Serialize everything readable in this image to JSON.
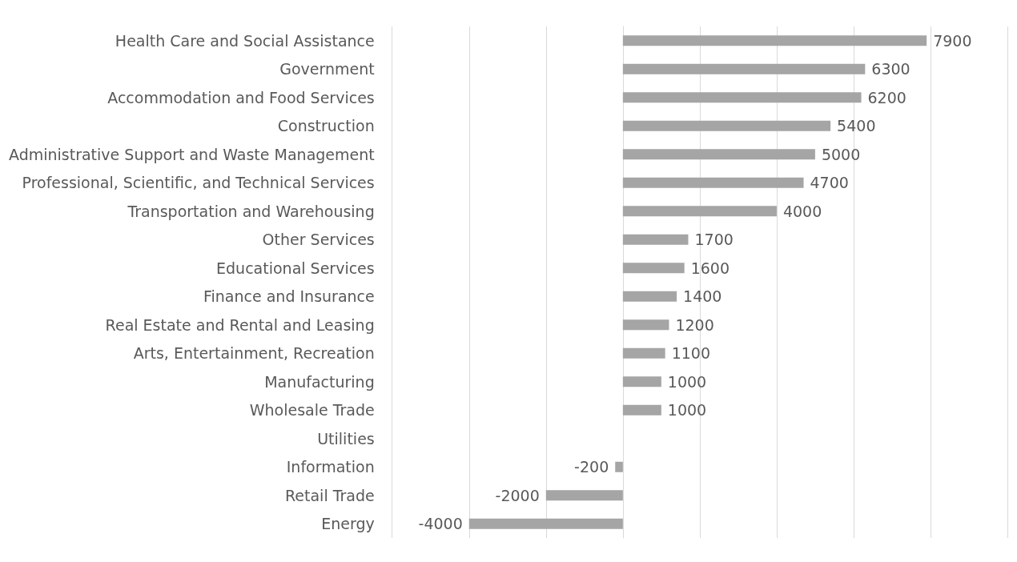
{
  "chart_data": {
    "type": "bar",
    "orientation": "horizontal",
    "categories": [
      "Health Care and Social Assistance",
      "Government",
      "Accommodation and Food Services",
      "Construction",
      "Administrative Support and Waste Management",
      "Professional, Scientific, and Technical Services",
      "Transportation and Warehousing",
      "Other Services",
      "Educational Services",
      "Finance and Insurance",
      "Real Estate and Rental and Leasing",
      "Arts, Entertainment, Recreation",
      "Manufacturing",
      "Wholesale Trade",
      "Utilities",
      "Information",
      "Retail Trade",
      "Energy"
    ],
    "values": [
      7900,
      6300,
      6200,
      5400,
      5000,
      4700,
      4000,
      1700,
      1600,
      1400,
      1200,
      1100,
      1000,
      1000,
      0,
      -200,
      -2000,
      -4000
    ],
    "value_labels": [
      "7900",
      "6300",
      "6200",
      "5400",
      "5000",
      "4700",
      "4000",
      "1700",
      "1600",
      "1400",
      "1200",
      "1100",
      "1000",
      "1000",
      null,
      "-200",
      "-2000",
      "-4000"
    ],
    "color": "#a5a5a5",
    "xlim": [
      -6000,
      10000
    ],
    "xticks": [
      {
        "value": -6000,
        "label": null
      },
      {
        "value": -4000,
        "label": null
      },
      {
        "value": -2000,
        "label": null
      },
      {
        "value": 0,
        "label": null
      },
      {
        "value": 2000,
        "label": null
      },
      {
        "value": 4000,
        "label": null
      },
      {
        "value": 6000,
        "label": null
      },
      {
        "value": 8000,
        "label": null
      },
      {
        "value": 10000,
        "label": null
      }
    ],
    "grid": "x",
    "tick_labels": "y"
  }
}
